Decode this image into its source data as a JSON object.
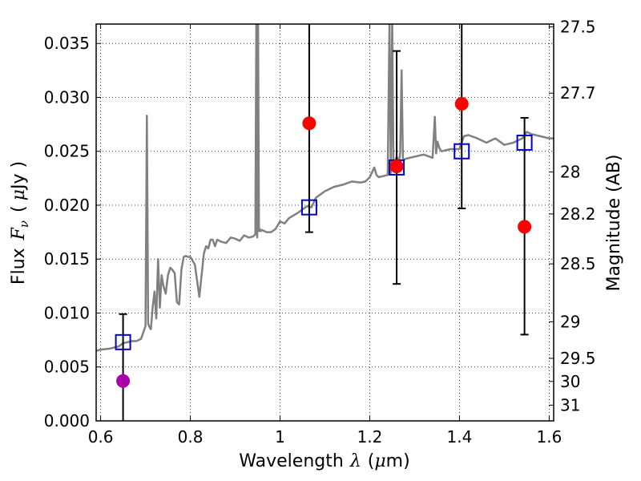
{
  "chart_data": {
    "type": "scatter",
    "xlabel_prefix": "Wavelength",
    "xlabel_symbol": "λ",
    "xlabel_unit_open": "(",
    "xlabel_unit_mu": "μ",
    "xlabel_unit_rest": "m)",
    "ylabel_prefix": "Flux",
    "ylabel_symbol": "F",
    "ylabel_sub": "ν",
    "ylabel_unit_open": "(",
    "ylabel_unit_mu": "μ",
    "ylabel_unit_rest": "Jy )",
    "y2label": "Magnitude (AB)",
    "xlim": [
      0.59,
      1.61
    ],
    "ylim": [
      0.0,
      0.0368
    ],
    "grid": true,
    "x_ticks": [
      {
        "value": 0.6,
        "label": "0.6"
      },
      {
        "value": 0.8,
        "label": "0.8"
      },
      {
        "value": 1.0,
        "label": "1"
      },
      {
        "value": 1.2,
        "label": "1.2"
      },
      {
        "value": 1.4,
        "label": "1.4"
      },
      {
        "value": 1.6,
        "label": "1.6"
      }
    ],
    "y_ticks": [
      {
        "value": 0.0,
        "label": "0.000"
      },
      {
        "value": 0.005,
        "label": "0.005"
      },
      {
        "value": 0.01,
        "label": "0.010"
      },
      {
        "value": 0.015,
        "label": "0.015"
      },
      {
        "value": 0.02,
        "label": "0.020"
      },
      {
        "value": 0.025,
        "label": "0.025"
      },
      {
        "value": 0.03,
        "label": "0.030"
      },
      {
        "value": 0.035,
        "label": "0.035"
      }
    ],
    "y2_ticks": [
      {
        "flux": 0.03654,
        "label": "27.5"
      },
      {
        "flux": 0.03039,
        "label": "27.7"
      },
      {
        "flux": 0.02308,
        "label": "28"
      },
      {
        "flux": 0.01919,
        "label": "28.2"
      },
      {
        "flux": 0.01456,
        "label": "28.5"
      },
      {
        "flux": 0.00919,
        "label": "29"
      },
      {
        "flux": 0.0058,
        "label": "29.5"
      },
      {
        "flux": 0.00366,
        "label": "30"
      },
      {
        "flux": 0.00146,
        "label": "31"
      }
    ],
    "model_spectrum": {
      "name": "model SED",
      "color": "#808080",
      "x": [
        0.59,
        0.6,
        0.62,
        0.64,
        0.65,
        0.66,
        0.67,
        0.68,
        0.69,
        0.7,
        0.703,
        0.706,
        0.709,
        0.712,
        0.716,
        0.72,
        0.724,
        0.728,
        0.732,
        0.736,
        0.74,
        0.745,
        0.75,
        0.755,
        0.76,
        0.765,
        0.77,
        0.775,
        0.78,
        0.785,
        0.79,
        0.795,
        0.8,
        0.81,
        0.82,
        0.83,
        0.835,
        0.84,
        0.845,
        0.85,
        0.855,
        0.86,
        0.87,
        0.88,
        0.89,
        0.9,
        0.91,
        0.92,
        0.93,
        0.94,
        0.945,
        0.947,
        0.949,
        0.951,
        0.953,
        0.955,
        0.957,
        0.96,
        0.97,
        0.98,
        0.99,
        1.0,
        1.01,
        1.02,
        1.04,
        1.06,
        1.07,
        1.08,
        1.1,
        1.12,
        1.14,
        1.16,
        1.18,
        1.19,
        1.2,
        1.21,
        1.215,
        1.22,
        1.23,
        1.24,
        1.244,
        1.247,
        1.25,
        1.253,
        1.256,
        1.26,
        1.265,
        1.268,
        1.271,
        1.274,
        1.28,
        1.3,
        1.32,
        1.34,
        1.345,
        1.348,
        1.351,
        1.355,
        1.36,
        1.38,
        1.4,
        1.41,
        1.42,
        1.44,
        1.46,
        1.48,
        1.5,
        1.52,
        1.54,
        1.55,
        1.56,
        1.58,
        1.6,
        1.61
      ],
      "y": [
        0.0065,
        0.0066,
        0.0067,
        0.0069,
        0.0072,
        0.0073,
        0.0074,
        0.0074,
        0.0076,
        0.0088,
        0.0283,
        0.009,
        0.0087,
        0.0085,
        0.0105,
        0.012,
        0.0095,
        0.015,
        0.0105,
        0.0135,
        0.0125,
        0.0118,
        0.0135,
        0.0142,
        0.014,
        0.0137,
        0.011,
        0.0108,
        0.014,
        0.0152,
        0.0153,
        0.0152,
        0.0152,
        0.0145,
        0.0115,
        0.0155,
        0.0162,
        0.016,
        0.0168,
        0.0168,
        0.0162,
        0.0168,
        0.0166,
        0.0165,
        0.017,
        0.0169,
        0.0167,
        0.0172,
        0.017,
        0.0171,
        0.0173,
        0.037,
        0.017,
        0.037,
        0.0176,
        0.0178,
        0.0176,
        0.0177,
        0.0175,
        0.0175,
        0.0178,
        0.0185,
        0.0183,
        0.0188,
        0.0193,
        0.0199,
        0.0198,
        0.0207,
        0.0213,
        0.0217,
        0.0219,
        0.0222,
        0.0221,
        0.0222,
        0.0226,
        0.0235,
        0.0228,
        0.0226,
        0.0227,
        0.0228,
        0.037,
        0.023,
        0.037,
        0.0235,
        0.024,
        0.0245,
        0.0238,
        0.025,
        0.0325,
        0.0242,
        0.0243,
        0.0245,
        0.0247,
        0.0244,
        0.0282,
        0.0248,
        0.0259,
        0.0253,
        0.025,
        0.0252,
        0.0252,
        0.0264,
        0.0265,
        0.0262,
        0.0258,
        0.0262,
        0.0256,
        0.0258,
        0.0262,
        0.0268,
        0.0266,
        0.0264,
        0.0262,
        0.0262
      ]
    },
    "synthetic_photometry": {
      "name": "model bands",
      "color": "#0000cc",
      "x": [
        0.65,
        1.065,
        1.26,
        1.405,
        1.545
      ],
      "y": [
        0.0073,
        0.0198,
        0.0235,
        0.025,
        0.0258
      ]
    },
    "observed_red": {
      "name": "NIR detections",
      "color": "#ff0000",
      "x": [
        1.065,
        1.26,
        1.405,
        1.545
      ],
      "y": [
        0.0276,
        0.0236,
        0.0294,
        0.018
      ],
      "err_low": [
        0.0175,
        0.0127,
        0.0197,
        0.008
      ],
      "err_high": [
        0.037,
        0.0343,
        0.037,
        0.0281
      ]
    },
    "observed_purple": {
      "name": "optical point",
      "color": "#aa00aa",
      "x": [
        0.65
      ],
      "y": [
        0.0037
      ],
      "err_low": [
        0.0
      ],
      "err_high": [
        0.0099
      ]
    }
  }
}
